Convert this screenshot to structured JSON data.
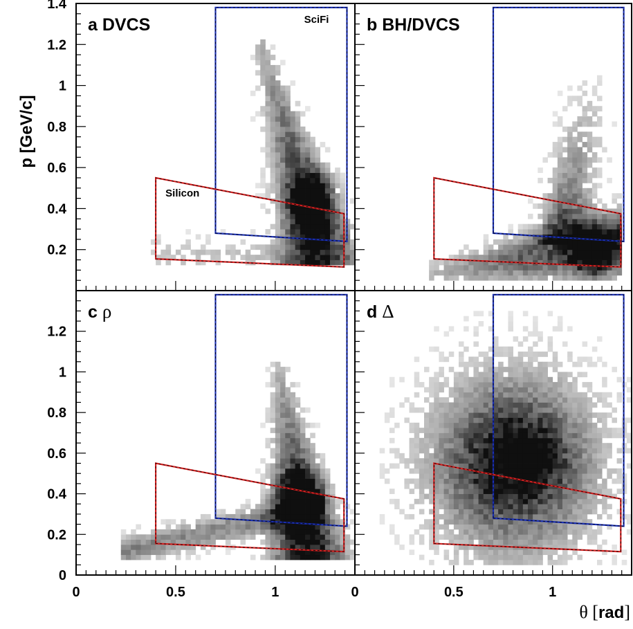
{
  "chart_data": {
    "type": "heatmap",
    "xlabel": {
      "symbol": "θ",
      "unit_open": " [",
      "unit": "rad",
      "unit_close": "]"
    },
    "ylabel": {
      "prefix": "p ",
      "unit": "[GeV/c]"
    },
    "xlim": [
      0,
      1.4
    ],
    "ylim": [
      0,
      1.4
    ],
    "x_ticks": [
      0,
      0.5,
      1
    ],
    "y_ticks_top_row": [
      0.2,
      0.4,
      0.6,
      0.8,
      1,
      1.2,
      1.4
    ],
    "y_ticks_bottom_row": [
      0,
      0.2,
      0.4,
      0.6,
      0.8,
      1,
      1.2
    ],
    "grid": false,
    "colormap": "grayscale",
    "acceptance_regions": [
      {
        "name": "SciFi",
        "color": "#1a2fb5",
        "polygon": [
          [
            0.7,
            0.28
          ],
          [
            1.36,
            0.24
          ],
          [
            1.36,
            1.38
          ],
          [
            0.7,
            1.38
          ]
        ]
      },
      {
        "name": "Silicon",
        "color": "#d42020",
        "polygon": [
          [
            0.4,
            0.155
          ],
          [
            1.345,
            0.115
          ],
          [
            1.345,
            0.375
          ],
          [
            0.4,
            0.55
          ]
        ]
      }
    ],
    "panels": [
      {
        "id": "a",
        "letter": "a",
        "title": "DVCS",
        "title_font": "sans",
        "show_region_labels": true,
        "distribution": {
          "shape": "ridge",
          "x0": 0.93,
          "x1": 1.23,
          "y_top": 1.2,
          "y_bottom": 0.15,
          "peak": [
            1.18,
            0.42
          ],
          "spread": 0.05
        }
      },
      {
        "id": "b",
        "letter": "b",
        "title": "BH/DVCS",
        "title_font": "sans",
        "show_region_labels": false,
        "distribution": {
          "shape": "band",
          "x_start": 0.37,
          "x_end": 1.3,
          "y_top": 1.05,
          "y_bottom": 0.05,
          "peak": [
            1.2,
            0.2
          ],
          "spread": 0.05
        }
      },
      {
        "id": "c",
        "letter": "c",
        "title": "ρ",
        "title_font": "serif",
        "show_region_labels": false,
        "distribution": {
          "shape": "ridge_tail",
          "x0": 1.02,
          "x1": 1.17,
          "y_top": 1.03,
          "y_bottom": 0.1,
          "peak": [
            1.12,
            0.35
          ],
          "spread": 0.05
        }
      },
      {
        "id": "d",
        "letter": "d",
        "title": "Δ",
        "title_font": "serif",
        "show_region_labels": false,
        "distribution": {
          "shape": "blob",
          "center": [
            0.8,
            0.55
          ],
          "sigma": [
            0.27,
            0.28
          ],
          "peak": [
            0.85,
            0.58
          ],
          "spread": 0.05
        }
      }
    ]
  }
}
